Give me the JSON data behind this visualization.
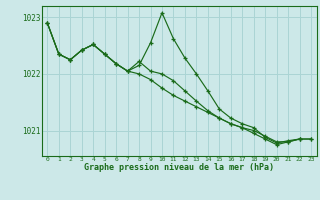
{
  "bg_color": "#cce8e8",
  "grid_color": "#aad4d4",
  "line_color": "#1a6b1a",
  "xlabel": "Graphe pression niveau de la mer (hPa)",
  "xlim": [
    -0.5,
    23.5
  ],
  "ylim": [
    1020.55,
    1023.2
  ],
  "yticks": [
    1021,
    1022,
    1023
  ],
  "xticks": [
    0,
    1,
    2,
    3,
    4,
    5,
    6,
    7,
    8,
    9,
    10,
    11,
    12,
    13,
    14,
    15,
    16,
    17,
    18,
    19,
    20,
    21,
    22,
    23
  ],
  "line1_x": [
    0,
    1,
    2,
    3,
    4,
    5,
    6,
    7,
    8,
    9,
    10,
    11,
    12,
    13,
    14,
    15,
    16,
    17,
    18,
    19,
    20,
    21,
    22,
    23
  ],
  "line1_y": [
    1022.9,
    1022.35,
    1022.25,
    1022.42,
    1022.52,
    1022.35,
    1022.18,
    1022.05,
    1022.0,
    1021.9,
    1021.75,
    1021.62,
    1021.52,
    1021.42,
    1021.32,
    1021.22,
    1021.12,
    1021.05,
    1021.0,
    1020.9,
    1020.8,
    1020.8,
    1020.85,
    1020.85
  ],
  "line2_x": [
    0,
    1,
    2,
    3,
    4,
    5,
    6,
    7,
    8,
    9,
    10,
    11,
    12,
    13,
    14,
    15,
    16,
    17,
    18,
    19,
    20,
    21,
    22
  ],
  "line2_y": [
    1022.9,
    1022.35,
    1022.25,
    1022.42,
    1022.52,
    1022.35,
    1022.18,
    1022.05,
    1022.15,
    1022.55,
    1023.08,
    1022.62,
    1022.28,
    1022.0,
    1021.7,
    1021.38,
    1021.22,
    1021.12,
    1021.05,
    1020.88,
    1020.78,
    1020.82,
    1020.85
  ],
  "line3_x": [
    0,
    1,
    2,
    3,
    4,
    5,
    6,
    7,
    8,
    9,
    10,
    11,
    12,
    13,
    14,
    15,
    16,
    17,
    18,
    19,
    20,
    21,
    22,
    23
  ],
  "line3_y": [
    1022.9,
    1022.35,
    1022.25,
    1022.42,
    1022.52,
    1022.35,
    1022.18,
    1022.05,
    1022.22,
    1022.05,
    1022.0,
    1021.88,
    1021.7,
    1021.52,
    1021.35,
    1021.22,
    1021.12,
    1021.05,
    1020.95,
    1020.85,
    1020.75,
    1020.8,
    1020.85,
    1020.85
  ],
  "figsize": [
    3.2,
    2.0
  ],
  "dpi": 100
}
